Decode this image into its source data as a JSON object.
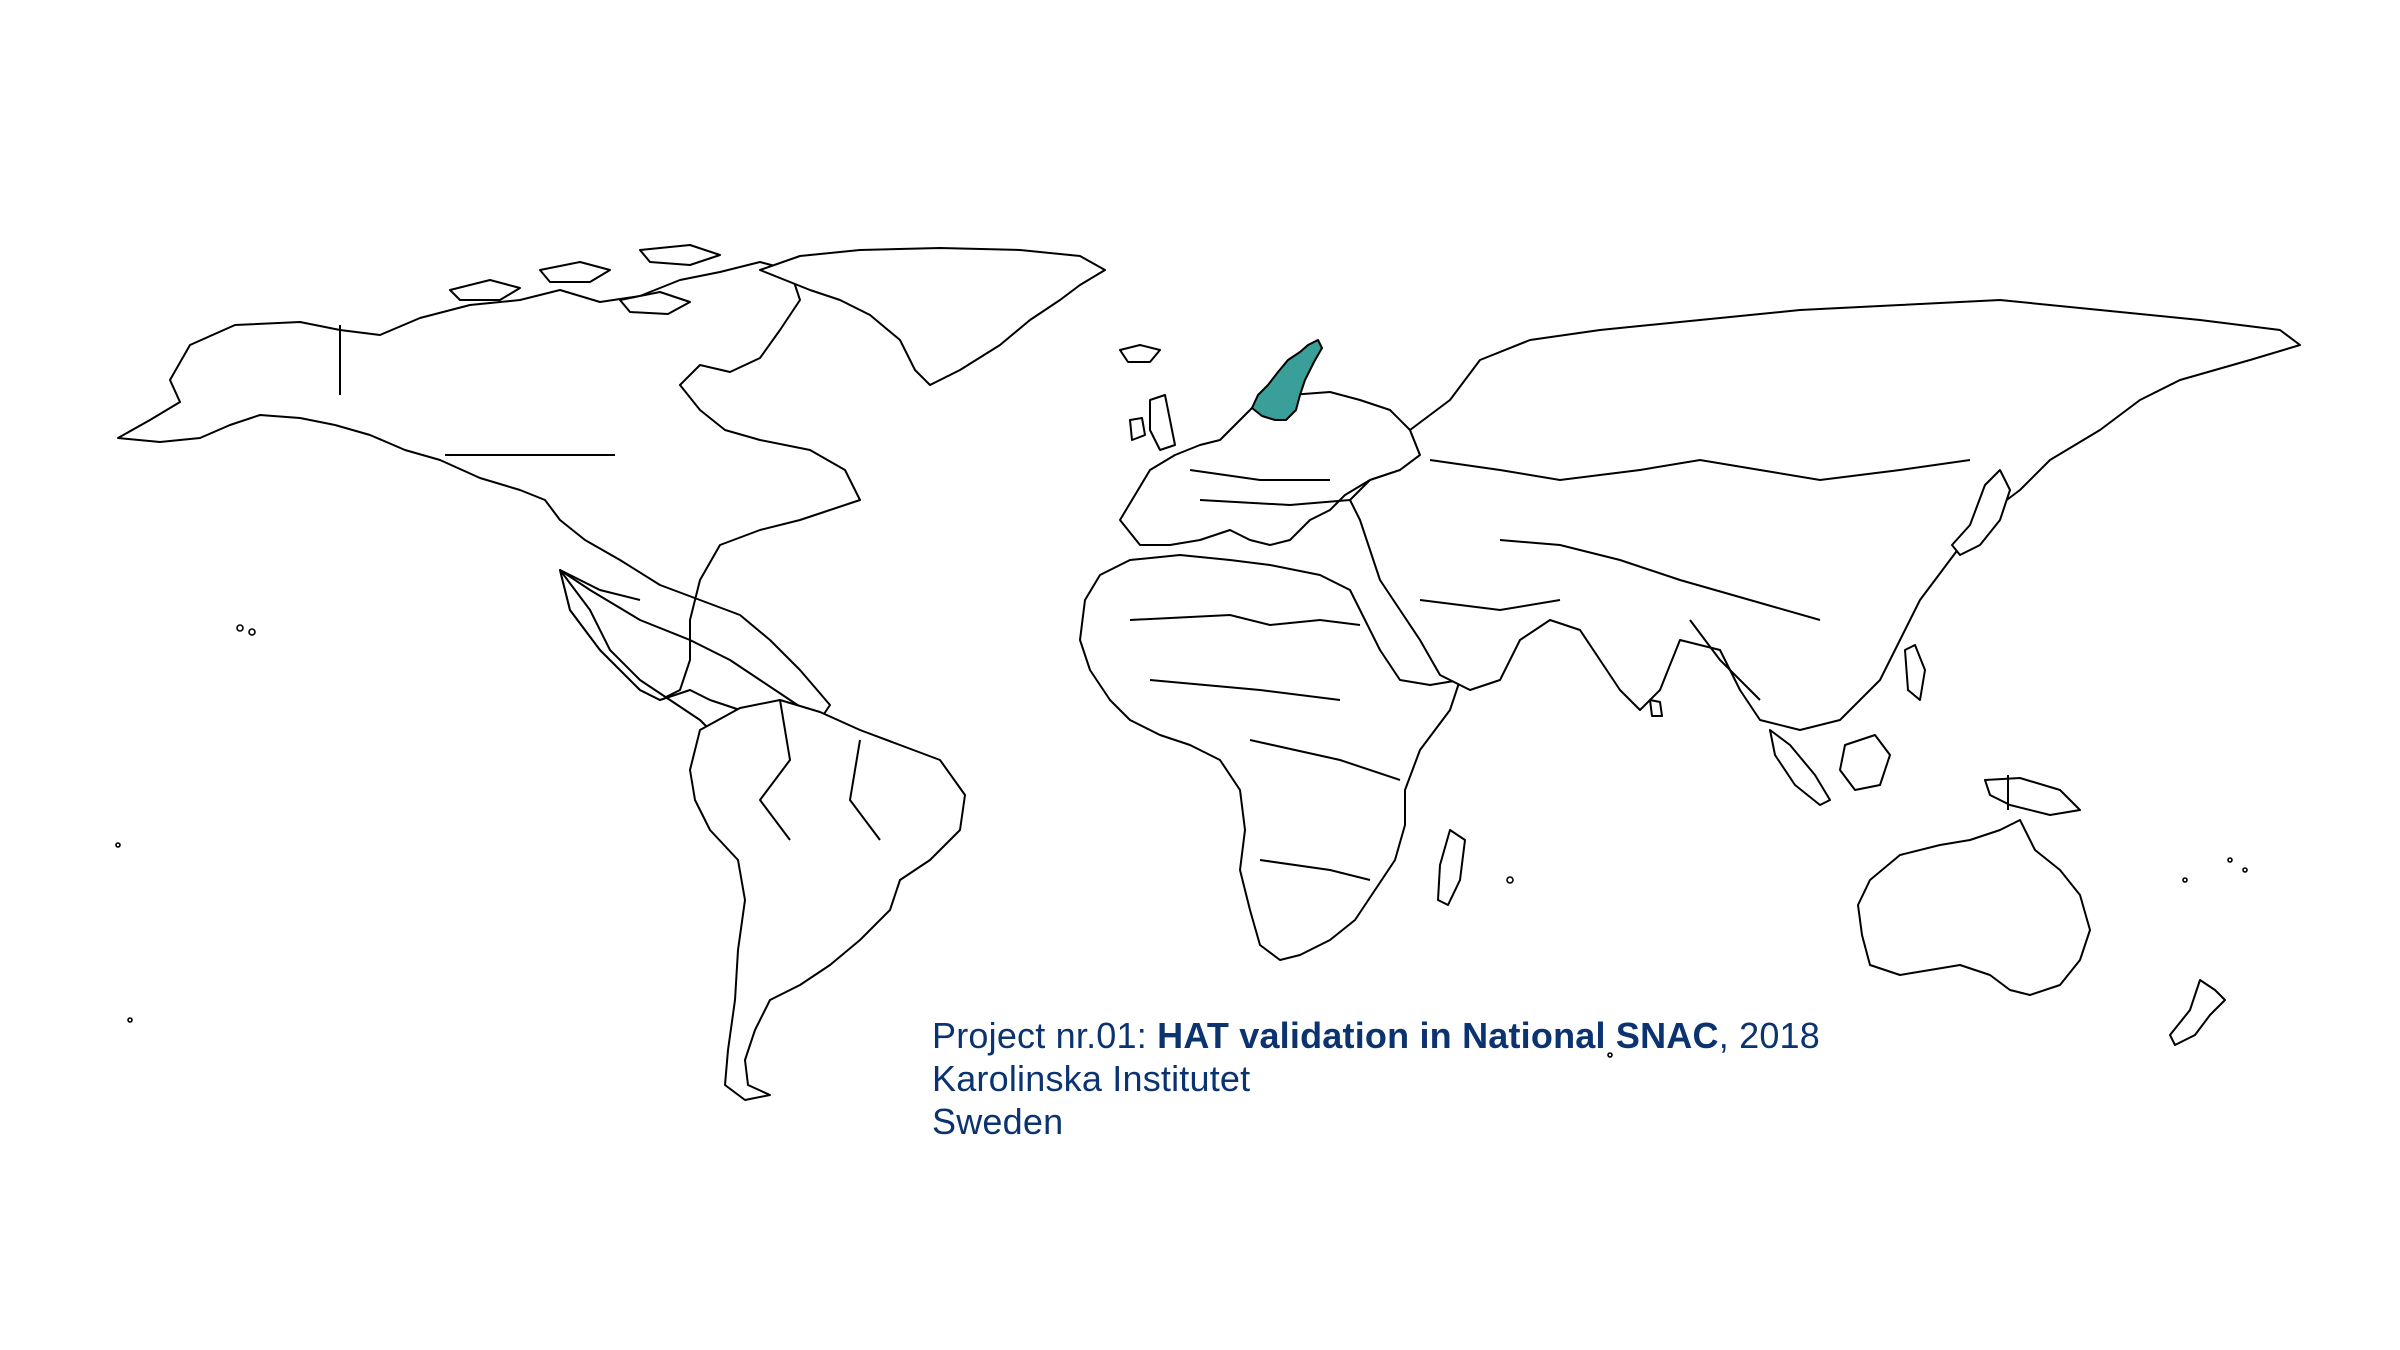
{
  "map": {
    "highlighted_country": "Sweden",
    "highlight_color": "#3a9e99",
    "land_fill": "#ffffff",
    "outline_color": "#000000",
    "background": "#ffffff"
  },
  "caption": {
    "prefix": "Project nr.01: ",
    "project_title": "HAT validation in National SNAC",
    "suffix": ", 2018",
    "institution": "Karolinska Institutet",
    "country": "Sweden",
    "color": "#0b3370"
  }
}
